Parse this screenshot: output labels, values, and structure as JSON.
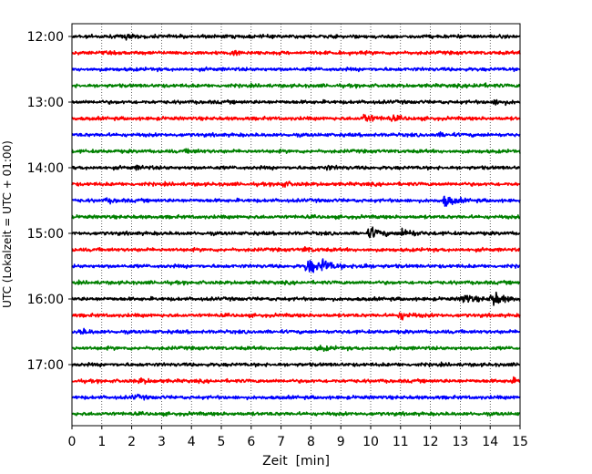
{
  "chart_data": {
    "type": "line",
    "xlabel": "Zeit  [min]",
    "ylabel": "UTC (Lokalzeit = UTC + 01:00)",
    "xlim": [
      0,
      15
    ],
    "x_ticks": [
      "0",
      "1",
      "2",
      "3",
      "4",
      "5",
      "6",
      "7",
      "8",
      "9",
      "10",
      "11",
      "12",
      "13",
      "14",
      "15"
    ],
    "y_tick_labels": [
      "12:00",
      "13:00",
      "14:00",
      "15:00",
      "16:00",
      "17:00"
    ],
    "grid": "vertical dotted lines at every minute",
    "trace_count": 24,
    "trace_start": "12:00",
    "trace_interval_min": 15,
    "trace_colors": [
      "#000000",
      "#ff0000",
      "#0000ff",
      "#008000"
    ],
    "events": [
      {
        "trace_start": "12:00",
        "minute": 1.8,
        "amplitude": 0.6
      },
      {
        "trace_start": "12:15",
        "minute": 5.4,
        "amplitude": 0.5
      },
      {
        "trace_start": "12:45",
        "minute": 13.5,
        "amplitude": 0.5
      },
      {
        "trace_start": "13:00",
        "minute": 14.2,
        "amplitude": 0.7
      },
      {
        "trace_start": "13:15",
        "minute": 9.8,
        "amplitude": 1.5
      },
      {
        "trace_start": "13:15",
        "minute": 10.7,
        "amplitude": 0.6
      },
      {
        "trace_start": "13:30",
        "minute": 12.3,
        "amplitude": 0.4
      },
      {
        "trace_start": "13:45",
        "minute": 3.9,
        "amplitude": 0.5
      },
      {
        "trace_start": "14:00",
        "minute": 2.2,
        "amplitude": 0.4
      },
      {
        "trace_start": "14:00",
        "minute": 8.5,
        "amplitude": 0.5
      },
      {
        "trace_start": "14:15",
        "minute": 7.0,
        "amplitude": 0.8
      },
      {
        "trace_start": "14:30",
        "minute": 1.2,
        "amplitude": 0.5
      },
      {
        "trace_start": "14:30",
        "minute": 12.5,
        "amplitude": 1.8
      },
      {
        "trace_start": "15:00",
        "minute": 10.0,
        "amplitude": 1.8
      },
      {
        "trace_start": "15:00",
        "minute": 11.1,
        "amplitude": 1.5
      },
      {
        "trace_start": "15:15",
        "minute": 7.8,
        "amplitude": 0.6
      },
      {
        "trace_start": "15:30",
        "minute": 7.9,
        "amplitude": 2.7
      },
      {
        "trace_start": "15:30",
        "minute": 8.4,
        "amplitude": 1.8
      },
      {
        "trace_start": "15:30",
        "minute": 9.6,
        "amplitude": 0.8
      },
      {
        "trace_start": "16:00",
        "minute": 13.1,
        "amplitude": 1.6
      },
      {
        "trace_start": "16:00",
        "minute": 14.1,
        "amplitude": 2.4
      },
      {
        "trace_start": "16:15",
        "minute": 11.0,
        "amplitude": 1.1
      },
      {
        "trace_start": "16:30",
        "minute": 0.3,
        "amplitude": 0.7
      },
      {
        "trace_start": "16:45",
        "minute": 8.3,
        "amplitude": 0.6
      },
      {
        "trace_start": "17:15",
        "minute": 2.3,
        "amplitude": 0.6
      },
      {
        "trace_start": "17:15",
        "minute": 14.7,
        "amplitude": 0.6
      },
      {
        "trace_start": "17:30",
        "minute": 2.1,
        "amplitude": 0.5
      }
    ]
  }
}
